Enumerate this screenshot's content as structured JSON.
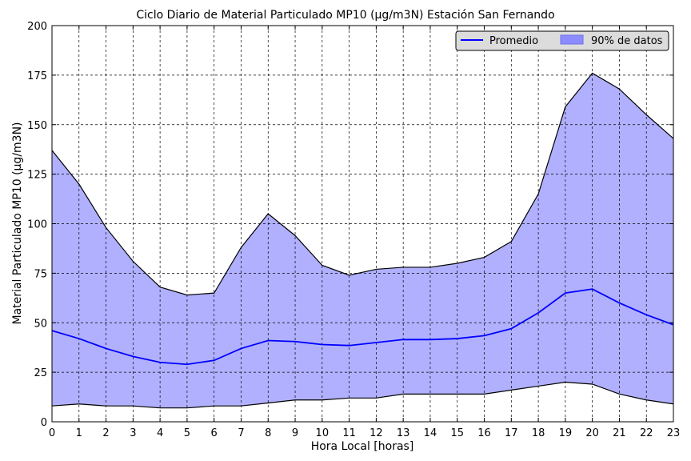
{
  "chart_data": {
    "type": "area",
    "title": "Ciclo Diario de Material Particulado MP10 (µg/m3N) Estación San Fernando",
    "xlabel": "Hora Local [horas]",
    "ylabel": "Material Particulado MP10 (µg/m3N)",
    "xlim": [
      0,
      23
    ],
    "ylim": [
      0,
      200
    ],
    "x_ticks": [
      0,
      1,
      2,
      3,
      4,
      5,
      6,
      7,
      8,
      9,
      10,
      11,
      12,
      13,
      14,
      15,
      16,
      17,
      18,
      19,
      20,
      21,
      22,
      23
    ],
    "y_ticks": [
      0,
      25,
      50,
      75,
      100,
      125,
      150,
      175,
      200
    ],
    "grid": true,
    "legend_position": "top-right",
    "x": [
      0,
      1,
      2,
      3,
      4,
      5,
      6,
      7,
      8,
      9,
      10,
      11,
      12,
      13,
      14,
      15,
      16,
      17,
      18,
      19,
      20,
      21,
      22,
      23
    ],
    "series": [
      {
        "name": "Promedio",
        "kind": "line",
        "color": "#0000ff",
        "values": [
          46,
          42,
          37,
          33,
          30,
          29,
          31,
          37,
          41,
          40.5,
          39,
          38.5,
          40,
          41.5,
          41.5,
          42,
          43.5,
          47,
          55,
          65,
          67,
          60,
          54,
          49
        ]
      },
      {
        "name": "90% de datos",
        "kind": "band",
        "color": "#b0b0ff",
        "lower": [
          8,
          9,
          8,
          8,
          7,
          7,
          8,
          8,
          9.5,
          11,
          11,
          12,
          12,
          14,
          14,
          14,
          14,
          16,
          18,
          20,
          19,
          14,
          11,
          9
        ],
        "upper": [
          137,
          120,
          98,
          81,
          68,
          64,
          65,
          88,
          105,
          94,
          79,
          74,
          77,
          78,
          78,
          80,
          83,
          91,
          115,
          159,
          176,
          168,
          155,
          143
        ]
      }
    ]
  }
}
